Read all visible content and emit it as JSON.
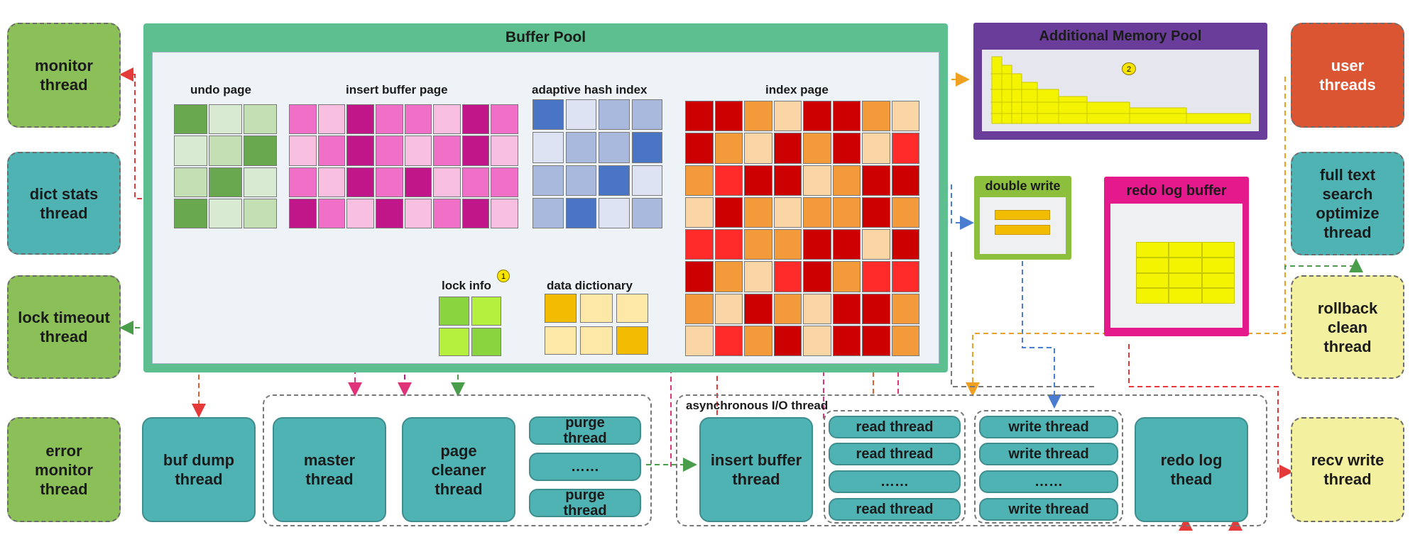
{
  "buffer_pool": {
    "title": "Buffer Pool",
    "undo_page": "undo page",
    "insert_buffer_page": "insert buffer page",
    "adaptive_hash_index": "adaptive hash index",
    "index_page": "index page",
    "lock_info": "lock info",
    "data_dictionary": "data dictionary",
    "note_badge": "1"
  },
  "additional_memory_pool": {
    "title": "Additional Memory Pool",
    "note_badge": "2"
  },
  "double_write": {
    "title": "double write"
  },
  "redo_log_buffer": {
    "title": "redo log buffer"
  },
  "left_threads": {
    "monitor": "monitor\nthread",
    "dict_stats": "dict stats\nthread",
    "lock_timeout": "lock timeout\nthread",
    "error_monitor": "error\nmonitor\nthread"
  },
  "right_threads": {
    "user": "user\nthreads",
    "full_text": "full text\nsearch\noptimize\nthread",
    "rollback": "rollback\nclean\nthread",
    "recv_write": "recv write\nthread"
  },
  "bottom": {
    "buf_dump": "buf dump\nthread",
    "master": "master\nthread",
    "page_cleaner": "page\ncleaner\nthread",
    "purge_1": "purge\nthread",
    "purge_dots": "……",
    "purge_2": "purge\nthread",
    "async_label": "asynchronous I/O thread",
    "insert_buffer_thread": "insert buffer\nthread",
    "read_1": "read thread",
    "read_2": "read thread",
    "read_dots": "……",
    "read_3": "read thread",
    "write_1": "write thread",
    "write_2": "write thread",
    "write_dots": "……",
    "write_3": "write thread",
    "redo_log_thread": "redo log\nthead"
  },
  "colors": {
    "buffer_pool_border": "#5dbf8f",
    "undo_greens": [
      "#6aa84f",
      "#d9ead3",
      "#c5dfb4"
    ],
    "insert_pinks": [
      "#c0168a",
      "#f070c8",
      "#f9bfe0"
    ],
    "hash_blues": [
      "#4a74c4",
      "#dde3f3",
      "#a9b9de"
    ],
    "index_reds": [
      "#cc0000",
      "#ff2a2a",
      "#f39a3a",
      "#fad5a5"
    ],
    "dict_yellows": [
      "#f2bd00",
      "#fde8a7"
    ],
    "lock_greens": [
      "#8ad43f",
      "#b6f03f"
    ],
    "memory_pool_border": "#6a3d9a",
    "redo_border": "#e3198c"
  }
}
